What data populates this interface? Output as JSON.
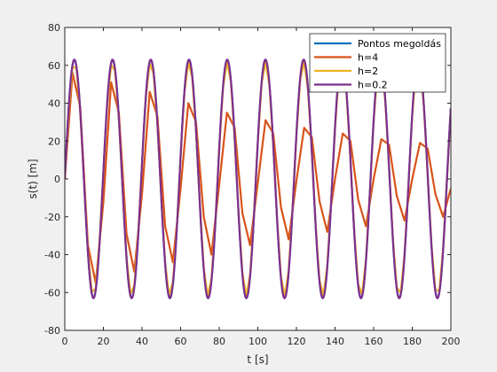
{
  "chart_data": {
    "type": "line",
    "title": "",
    "xlabel": "t [s]",
    "ylabel": "s(t) [m]",
    "xlim": [
      0,
      200
    ],
    "ylim": [
      -80,
      80
    ],
    "xticks": [
      0,
      20,
      40,
      60,
      80,
      100,
      120,
      140,
      160,
      180,
      200
    ],
    "yticks": [
      -80,
      -60,
      -40,
      -20,
      0,
      20,
      40,
      60,
      80
    ],
    "grid": false,
    "legend_position": "top-right",
    "model": {
      "amplitude": 63,
      "period": 19.8
    },
    "series": [
      {
        "name": "Pontos megoldás",
        "color": "#0072BD",
        "step": 0.5
      },
      {
        "name": "h=4",
        "color": "#D95319",
        "x": [
          0,
          4,
          8,
          12,
          16,
          20,
          24,
          28,
          32,
          36,
          40,
          44,
          48,
          52,
          56,
          60,
          64,
          68,
          72,
          76,
          80,
          84,
          88,
          92,
          96,
          100,
          104,
          108,
          112,
          116,
          120,
          124,
          128,
          132,
          136,
          140,
          144,
          148,
          152,
          156,
          160,
          164,
          168,
          172,
          176,
          180,
          184,
          188,
          192,
          196,
          200
        ],
        "values": [
          0,
          56,
          38,
          -35,
          -55,
          -12,
          51,
          35,
          -29,
          -49,
          -8,
          46,
          33,
          -25,
          -44,
          -5,
          40,
          30,
          -20,
          -40,
          -3,
          35,
          27,
          -18,
          -35,
          -2,
          31,
          24,
          -15,
          -32,
          -1,
          27,
          22,
          -12,
          -28,
          0,
          24,
          20,
          -11,
          -25,
          0,
          21,
          18,
          -9,
          -22,
          0,
          19,
          16,
          -8,
          -20,
          -5
        ]
      },
      {
        "name": "h=2",
        "color": "#EDB120",
        "step": 2,
        "amplitude": 62
      },
      {
        "name": "h=0.2",
        "color": "#7E2F8E",
        "step": 0.2
      }
    ]
  }
}
